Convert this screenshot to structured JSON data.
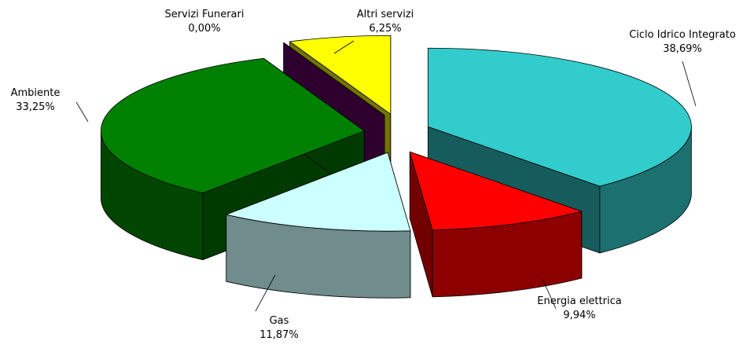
{
  "chart_data": {
    "type": "pie3d",
    "categories": [
      "Ciclo Idrico Integrato",
      "Energia elettrica",
      "Gas",
      "Ambiente",
      "Servizi Funerari",
      "Altri servizi"
    ],
    "values": [
      38.69,
      9.94,
      11.87,
      33.25,
      0.0,
      6.25
    ],
    "value_labels": [
      "38,69%",
      "9,94%",
      "11,87%",
      "33,25%",
      "0,00%",
      "6,25%"
    ],
    "colors": [
      "#33cccc",
      "#ff0000",
      "#ccffff",
      "#008000",
      "#660066",
      "#ffff00"
    ]
  }
}
